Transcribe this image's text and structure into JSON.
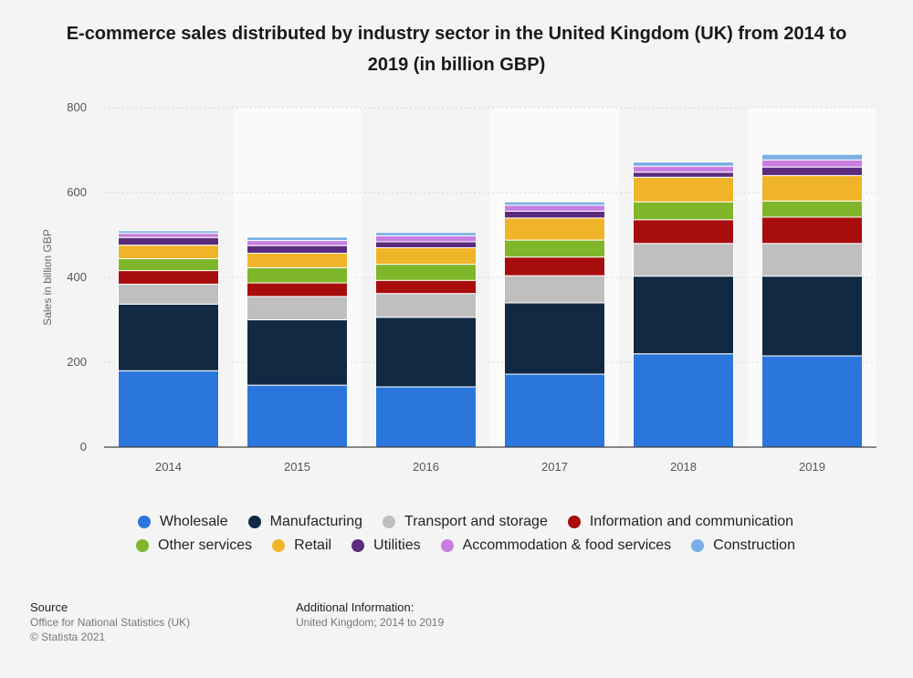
{
  "page": {
    "title": "E-commerce sales distributed by industry sector in the United Kingdom (UK) from 2014 to 2019 (in billion GBP)"
  },
  "footer": {
    "source_label": "Source",
    "source_text": "Office for National Statistics (UK)",
    "copyright": "© Statista 2021",
    "info_label": "Additional Information:",
    "info_text": "United Kingdom; 2014 to 2019"
  },
  "chart_data": {
    "type": "bar",
    "stacked": true,
    "title": "E-commerce sales distributed by industry sector in the United Kingdom (UK) from 2014 to 2019 (in billion GBP)",
    "xlabel": "",
    "ylabel": "Sales in billion GBP",
    "ylim": [
      0,
      800
    ],
    "yticks": [
      0,
      200,
      400,
      600,
      800
    ],
    "grid": true,
    "legend_position": "bottom",
    "categories": [
      "2014",
      "2015",
      "2016",
      "2017",
      "2018",
      "2019"
    ],
    "series": [
      {
        "name": "Wholesale",
        "color": "#2a76dd",
        "values": [
          180,
          146,
          142,
          172,
          220,
          215
        ]
      },
      {
        "name": "Manufacturing",
        "color": "#112943",
        "values": [
          157,
          154,
          164,
          168,
          183,
          188
        ]
      },
      {
        "name": "Transport and storage",
        "color": "#bfbfbf",
        "values": [
          47,
          55,
          56,
          64,
          77,
          77
        ]
      },
      {
        "name": "Information and communication",
        "color": "#a80d0d",
        "values": [
          32,
          32,
          31,
          44,
          56,
          62
        ]
      },
      {
        "name": "Other services",
        "color": "#7fb62a",
        "values": [
          28,
          36,
          38,
          40,
          42,
          38
        ]
      },
      {
        "name": "Retail",
        "color": "#f0b429",
        "values": [
          32,
          34,
          39,
          52,
          58,
          60
        ]
      },
      {
        "name": "Utilities",
        "color": "#5b2b7e",
        "values": [
          18,
          18,
          14,
          16,
          12,
          20
        ]
      },
      {
        "name": "Accommodation & food services",
        "color": "#c67fe0",
        "values": [
          10,
          12,
          14,
          14,
          14,
          17
        ]
      },
      {
        "name": "Construction",
        "color": "#7aaee6",
        "values": [
          6,
          8,
          8,
          8,
          10,
          13
        ]
      }
    ]
  }
}
